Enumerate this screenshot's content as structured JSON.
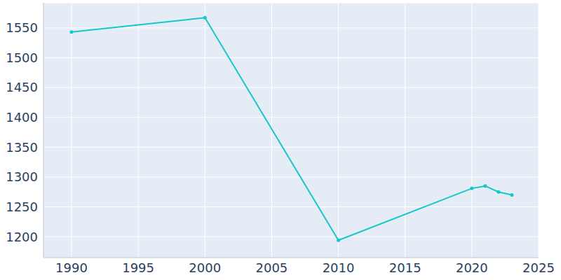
{
  "chart_data": {
    "type": "line",
    "x": [
      1990,
      2000,
      2010,
      2020,
      2021,
      2022,
      2023
    ],
    "values": [
      1543,
      1567,
      1194,
      1281,
      1285,
      1275,
      1270
    ],
    "color": "#14c8c8",
    "marker": "circle",
    "xlim": [
      1987.9,
      2025
    ],
    "xticks": [
      1990,
      1995,
      2000,
      2005,
      2010,
      2015,
      2020,
      2025
    ],
    "ylim": [
      1165,
      1592
    ],
    "yticks": [
      1200,
      1250,
      1300,
      1350,
      1400,
      1450,
      1500,
      1550
    ],
    "grid": true
  }
}
